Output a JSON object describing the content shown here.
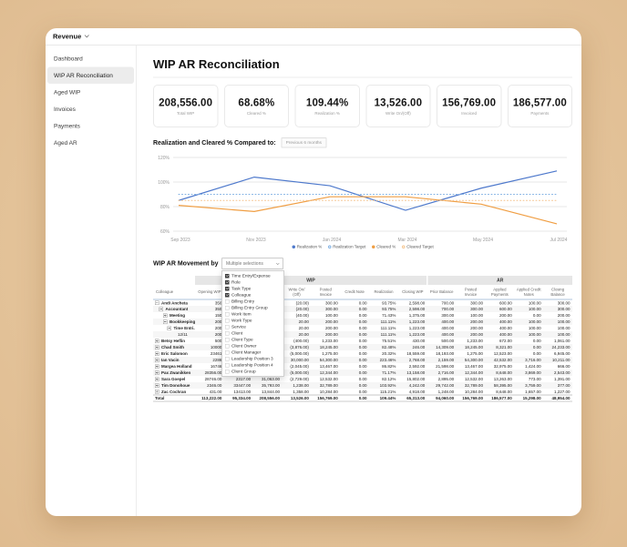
{
  "app": {
    "menu_label": "Revenue"
  },
  "sidebar": {
    "items": [
      {
        "label": "Dashboard",
        "selected": false
      },
      {
        "label": "WIP AR Reconciliation",
        "selected": true
      },
      {
        "label": "Aged WIP",
        "selected": false
      },
      {
        "label": "Invoices",
        "selected": false
      },
      {
        "label": "Payments",
        "selected": false
      },
      {
        "label": "Aged AR",
        "selected": false
      }
    ]
  },
  "page": {
    "title": "WIP AR Reconciliation"
  },
  "kpis": [
    {
      "value": "208,556.00",
      "label": "Total WIP"
    },
    {
      "value": "68.68%",
      "label": "Cleared %"
    },
    {
      "value": "109.44%",
      "label": "Realization %"
    },
    {
      "value": "13,526.00",
      "label": "Write On/(Off)"
    },
    {
      "value": "156,769.00",
      "label": "Invoiced"
    },
    {
      "value": "186,577.00",
      "label": "Payments"
    }
  ],
  "chart_section": {
    "heading": "Realization and Cleared % Compared to:",
    "period_selector": "Previous 6 months"
  },
  "chart_data": {
    "type": "line",
    "x": [
      "Sep 2023",
      "Nov 2023",
      "Jan 2024",
      "Mar 2024",
      "May 2024",
      "Jul 2024"
    ],
    "series": [
      {
        "name": "Realization %",
        "values": [
          85,
          104,
          97,
          77,
          95,
          109
        ],
        "color": "#4e79cc",
        "style": "solid"
      },
      {
        "name": "Realization Target",
        "values": [
          90,
          90,
          90,
          90,
          90,
          90
        ],
        "color": "#7fb0e3",
        "style": "dotted"
      },
      {
        "name": "Cleared %",
        "values": [
          81,
          76,
          88,
          88,
          82,
          66
        ],
        "color": "#f09e43",
        "style": "solid"
      },
      {
        "name": "Cleared Target",
        "values": [
          85,
          85,
          85,
          85,
          85,
          85
        ],
        "color": "#f5c48d",
        "style": "dotted"
      }
    ],
    "ylim": [
      60,
      120
    ],
    "yticks": [
      60,
      80,
      100,
      120
    ],
    "ytick_format": "{v}%",
    "grid": true,
    "legend_position": "bottom"
  },
  "movement_section": {
    "heading": "WIP AR Movement by",
    "selector_value": "Multiple selections",
    "options": [
      {
        "label": "Time Entry/Expense",
        "checked": true
      },
      {
        "label": "Role",
        "checked": true
      },
      {
        "label": "Task Type",
        "checked": true
      },
      {
        "label": "Colleague",
        "checked": true
      },
      {
        "label": "Billing Entry",
        "checked": false
      },
      {
        "label": "Billing Entry Group",
        "checked": false
      },
      {
        "label": "Work Item",
        "checked": false
      },
      {
        "label": "Work Type",
        "checked": false
      },
      {
        "label": "Service",
        "checked": false
      },
      {
        "label": "Client",
        "checked": false
      },
      {
        "label": "Client Type",
        "checked": false
      },
      {
        "label": "Client Owner",
        "checked": false
      },
      {
        "label": "Client Manager",
        "checked": false
      },
      {
        "label": "Leadership Position 3",
        "checked": false
      },
      {
        "label": "Leadership Position 4",
        "checked": false
      },
      {
        "label": "Client Group",
        "checked": false
      }
    ]
  },
  "table": {
    "group_headers": [
      {
        "label": "",
        "span": 1
      },
      {
        "label": "WIP",
        "span": 8
      },
      {
        "label": "AR",
        "span": 5
      }
    ],
    "columns": [
      "Colleague",
      "Opening WIP",
      "",
      "",
      "Write On/ (Off)",
      "Posted Invoice",
      "Credit Note",
      "Realization",
      "Closing WIP",
      "Prior Balance",
      "Posted Invoice",
      "Applied Payments",
      "Applied Credit Notes",
      "Closing Balance"
    ],
    "rows": [
      {
        "label": "Andi Ancheta",
        "level": 0,
        "expander": "minus",
        "bold": true,
        "total": false,
        "values": [
          "350",
          "",
          "",
          "(20.00)",
          "300.00",
          "0.00",
          "93.75%",
          "2,598.00",
          "700.00",
          "300.00",
          "600.00",
          "100.00",
          "300.00"
        ]
      },
      {
        "label": "Accountant",
        "level": 1,
        "expander": "minus",
        "bold": true,
        "total": false,
        "values": [
          "350",
          "",
          "",
          "(20.00)",
          "300.00",
          "0.00",
          "93.75%",
          "2,598.00",
          "700.00",
          "300.00",
          "600.00",
          "100.00",
          "300.00"
        ]
      },
      {
        "label": "Meeting",
        "level": 2,
        "expander": "plus",
        "bold": true,
        "total": false,
        "values": [
          "150",
          "",
          "",
          "(40.00)",
          "100.00",
          "0.00",
          "71.43%",
          "1,375.00",
          "300.00",
          "100.00",
          "200.00",
          "0.00",
          "200.00"
        ]
      },
      {
        "label": "Bookkeeping",
        "level": 2,
        "expander": "minus",
        "bold": true,
        "total": false,
        "values": [
          "200",
          "",
          "",
          "20.00",
          "200.00",
          "0.00",
          "111.11%",
          "1,223.00",
          "400.00",
          "200.00",
          "400.00",
          "100.00",
          "100.00"
        ]
      },
      {
        "label": "Time Entri...",
        "level": 3,
        "expander": "minus",
        "bold": true,
        "total": false,
        "values": [
          "200",
          "",
          "",
          "20.00",
          "200.00",
          "0.00",
          "111.11%",
          "1,223.00",
          "400.00",
          "200.00",
          "400.00",
          "100.00",
          "100.00"
        ]
      },
      {
        "label": "12/11",
        "level": 4,
        "expander": "none",
        "bold": false,
        "total": false,
        "values": [
          "200",
          "",
          "",
          "20.00",
          "200.00",
          "0.00",
          "111.11%",
          "1,223.00",
          "400.00",
          "200.00",
          "400.00",
          "100.00",
          "100.00"
        ]
      },
      {
        "label": "Betsy Heflin",
        "level": 0,
        "expander": "plus",
        "bold": true,
        "total": false,
        "values": [
          "500",
          "",
          "",
          "(400.00)",
          "1,233.00",
          "0.00",
          "75.51%",
          "430.00",
          "500.00",
          "1,233.00",
          "672.00",
          "0.00",
          "1,061.00"
        ]
      },
      {
        "label": "Chad Smith",
        "level": 0,
        "expander": "plus",
        "bold": true,
        "total": false,
        "values": [
          "10000",
          "",
          "",
          "(3,876.00)",
          "18,245.00",
          "0.00",
          "82.48%",
          "246.00",
          "14,309.00",
          "18,245.00",
          "8,321.00",
          "0.00",
          "24,233.00"
        ]
      },
      {
        "label": "Eric Salomon",
        "level": 0,
        "expander": "plus",
        "bold": true,
        "total": false,
        "values": [
          "23461",
          "",
          "",
          "(5,000.00)",
          "1,275.00",
          "0.00",
          "20.32%",
          "18,559.00",
          "18,193.00",
          "1,275.00",
          "12,523.00",
          "0.00",
          "6,945.00"
        ]
      },
      {
        "label": "Ian Vacin",
        "level": 0,
        "expander": "plus",
        "bold": true,
        "total": false,
        "values": [
          "2286",
          "",
          "",
          "30,000.00",
          "54,300.00",
          "0.00",
          "223.46%",
          "2,768.00",
          "2,159.00",
          "54,300.00",
          "42,532.00",
          "3,716.00",
          "10,211.00"
        ]
      },
      {
        "label": "Margea Holland",
        "level": 0,
        "expander": "plus",
        "bold": true,
        "total": false,
        "values": [
          "16746",
          "",
          "",
          "(2,045.00)",
          "13,467.00",
          "0.00",
          "86.82%",
          "2,592.00",
          "21,598.00",
          "13,467.00",
          "32,975.00",
          "1,424.00",
          "666.00"
        ]
      },
      {
        "label": "Pax Zwanikken",
        "level": 0,
        "expander": "plus",
        "bold": true,
        "total": false,
        "values": [
          "28356.00",
          "2146.00",
          "30,502.00",
          "(5,000.00)",
          "12,344.00",
          "0.00",
          "71.17%",
          "13,158.00",
          "2,716.00",
          "12,344.00",
          "8,648.00",
          "3,869.00",
          "2,543.00"
        ]
      },
      {
        "label": "Sara Goepel",
        "level": 0,
        "expander": "plus",
        "bold": true,
        "total": false,
        "values": [
          "28746.00",
          "2317.00",
          "31,063.00",
          "(2,729.00)",
          "12,532.00",
          "0.00",
          "82.12%",
          "15,802.00",
          "2,895.00",
          "12,532.00",
          "13,263.00",
          "773.00",
          "1,391.00"
        ]
      },
      {
        "label": "Tim Donohoue",
        "level": 0,
        "expander": "plus",
        "bold": true,
        "total": false,
        "values": [
          "2346.00",
          "33447.00",
          "35,793.00",
          "1,238.00",
          "32,789.00",
          "0.00",
          "103.92%",
          "4,242.00",
          "29,742.00",
          "32,789.00",
          "58,395.00",
          "3,759.00",
          "377.00"
        ]
      },
      {
        "label": "Zac Cochran",
        "level": 0,
        "expander": "plus",
        "bold": true,
        "total": false,
        "values": [
          "431.00",
          "13413.00",
          "13,844.00",
          "1,358.00",
          "10,284.00",
          "0.00",
          "115.21%",
          "4,918.00",
          "1,248.00",
          "10,284.00",
          "8,648.00",
          "1,657.00",
          "1,227.00"
        ]
      },
      {
        "label": "Total",
        "level": 0,
        "expander": "none",
        "bold": true,
        "total": true,
        "values": [
          "113,222.00",
          "95,334.00",
          "208,556.00",
          "13,526.00",
          "156,769.00",
          "0.00",
          "109.44%",
          "65,313.00",
          "94,060.00",
          "156,769.00",
          "186,577.00",
          "15,298.00",
          "48,954.00"
        ]
      }
    ]
  }
}
